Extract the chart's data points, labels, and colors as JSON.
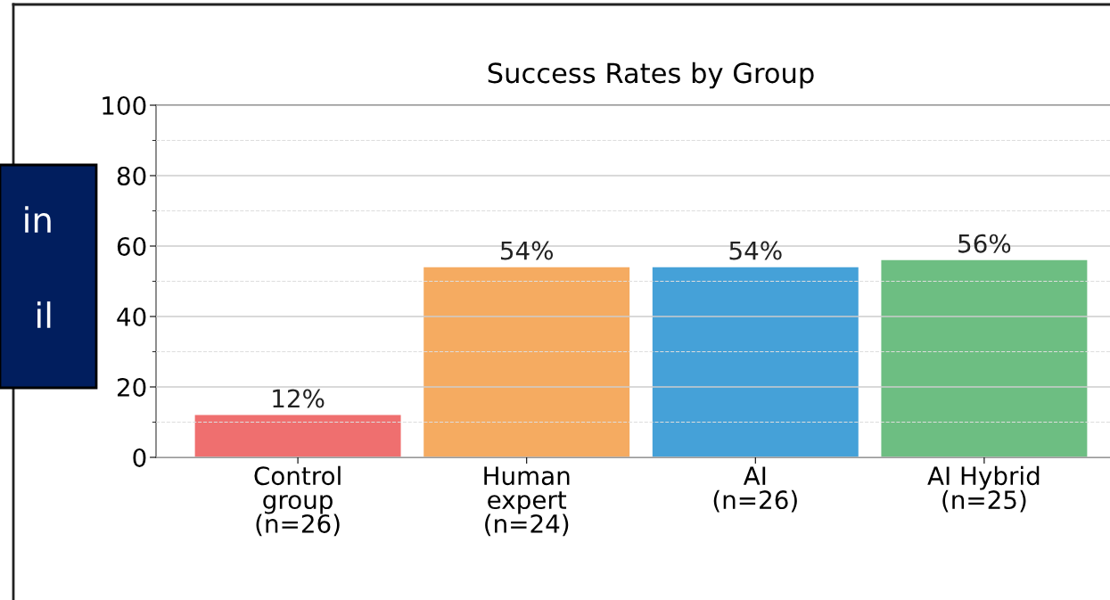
{
  "chart_data": {
    "type": "bar",
    "title": "Success Rates by Group",
    "categories": [
      "Control\ngroup\n(n=26)",
      "Human\nexpert\n(n=24)",
      "AI\n(n=26)",
      "AI Hybrid\n(n=25)"
    ],
    "values": [
      12,
      54,
      54,
      56
    ],
    "colors": [
      "#ef6f6f",
      "#f5ab61",
      "#45a1d8",
      "#6dbe82"
    ],
    "value_labels": [
      "12%",
      "54%",
      "54%",
      "56%"
    ],
    "ylim": [
      0,
      100
    ],
    "yticks": [
      0,
      20,
      40,
      60,
      80,
      100
    ],
    "grid": "y",
    "annotations": [
      "in",
      "il"
    ]
  }
}
